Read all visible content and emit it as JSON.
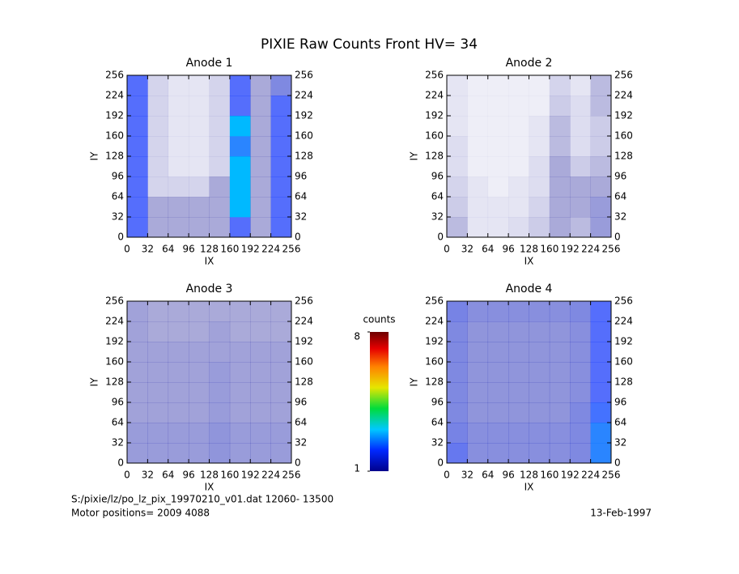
{
  "title": "PIXIE Raw Counts Front HV= 34",
  "chart_data": [
    {
      "type": "heatmap",
      "title": "Anode 1",
      "xlabel": "IX",
      "ylabel": "IY",
      "xlim": [
        0,
        256
      ],
      "ylim": [
        0,
        256
      ],
      "xticks": [
        0,
        32,
        64,
        96,
        128,
        160,
        192,
        224,
        256
      ],
      "yticks": [
        0,
        32,
        64,
        96,
        128,
        160,
        192,
        224,
        256
      ],
      "z": [
        [
          2,
          1,
          1,
          1,
          1,
          2,
          1,
          2
        ],
        [
          2,
          1,
          1,
          1,
          1,
          3,
          1,
          2
        ],
        [
          2,
          0.5,
          0.5,
          0.5,
          1,
          3,
          1,
          2
        ],
        [
          2,
          0.5,
          0.3,
          0.3,
          0.5,
          3,
          1,
          2
        ],
        [
          2,
          0.5,
          0.3,
          0.3,
          0.5,
          2.5,
          1,
          2
        ],
        [
          2,
          0.5,
          0.3,
          0.3,
          0.5,
          3,
          1,
          2
        ],
        [
          2,
          0.5,
          0.3,
          0.3,
          0.5,
          2,
          1,
          2
        ],
        [
          2,
          0.5,
          0.3,
          0.3,
          0.5,
          2,
          1,
          1.5
        ]
      ]
    },
    {
      "type": "heatmap",
      "title": "Anode 2",
      "xlabel": "IX",
      "ylabel": "IY",
      "xlim": [
        0,
        256
      ],
      "ylim": [
        0,
        256
      ],
      "xticks": [
        0,
        32,
        64,
        96,
        128,
        160,
        192,
        224,
        256
      ],
      "yticks": [
        0,
        32,
        64,
        96,
        128,
        160,
        192,
        224,
        256
      ],
      "z": [
        [
          0.8,
          0.3,
          0.3,
          0.4,
          0.6,
          1,
          0.8,
          1.2
        ],
        [
          0.6,
          0.3,
          0.3,
          0.3,
          0.5,
          1,
          1,
          1.2
        ],
        [
          0.5,
          0.3,
          0.2,
          0.3,
          0.4,
          1,
          1,
          1
        ],
        [
          0.4,
          0.2,
          0.2,
          0.2,
          0.4,
          1,
          0.6,
          0.8
        ],
        [
          0.4,
          0.2,
          0.2,
          0.2,
          0.3,
          0.8,
          0.4,
          0.6
        ],
        [
          0.3,
          0.2,
          0.2,
          0.2,
          0.3,
          0.8,
          0.4,
          0.6
        ],
        [
          0.3,
          0.2,
          0.2,
          0.2,
          0.2,
          0.6,
          0.4,
          0.8
        ],
        [
          0.3,
          0.2,
          0.2,
          0.2,
          0.2,
          0.5,
          0.3,
          0.8
        ]
      ]
    },
    {
      "type": "heatmap",
      "title": "Anode 3",
      "xlabel": "IX",
      "ylabel": "IY",
      "xlim": [
        0,
        256
      ],
      "ylim": [
        0,
        256
      ],
      "xticks": [
        0,
        32,
        64,
        96,
        128,
        160,
        192,
        224,
        256
      ],
      "yticks": [
        0,
        32,
        64,
        96,
        128,
        160,
        192,
        224,
        256
      ],
      "z": [
        [
          1.2,
          1.2,
          1.2,
          1.2,
          1.3,
          1.2,
          1.2,
          1.2
        ],
        [
          1.2,
          1.2,
          1.2,
          1.2,
          1.3,
          1.2,
          1.2,
          1.2
        ],
        [
          1.1,
          1.1,
          1.1,
          1.1,
          1.2,
          1.1,
          1.1,
          1.1
        ],
        [
          1.1,
          1.1,
          1.1,
          1.1,
          1.2,
          1.1,
          1.1,
          1.1
        ],
        [
          1.1,
          1.1,
          1.1,
          1.1,
          1.2,
          1.1,
          1.1,
          1.1
        ],
        [
          1.1,
          1.1,
          1.1,
          1.1,
          1.1,
          1.1,
          1.1,
          1.1
        ],
        [
          1.1,
          1,
          1,
          1,
          1.1,
          1,
          1,
          1
        ],
        [
          1.1,
          1,
          1,
          1,
          1,
          1,
          1,
          1
        ]
      ]
    },
    {
      "type": "heatmap",
      "title": "Anode 4",
      "xlabel": "IX",
      "ylabel": "IY",
      "xlim": [
        0,
        256
      ],
      "ylim": [
        0,
        256
      ],
      "xticks": [
        0,
        32,
        64,
        96,
        128,
        160,
        192,
        224,
        256
      ],
      "yticks": [
        0,
        32,
        64,
        96,
        128,
        160,
        192,
        224,
        256
      ],
      "z": [
        [
          1.8,
          1.4,
          1.4,
          1.4,
          1.4,
          1.4,
          1.5,
          2.5
        ],
        [
          1.6,
          1.4,
          1.4,
          1.4,
          1.4,
          1.4,
          1.5,
          2.5
        ],
        [
          1.5,
          1.3,
          1.3,
          1.3,
          1.3,
          1.3,
          1.5,
          2.2
        ],
        [
          1.5,
          1.3,
          1.3,
          1.3,
          1.3,
          1.3,
          1.4,
          2
        ],
        [
          1.5,
          1.3,
          1.3,
          1.3,
          1.3,
          1.3,
          1.4,
          2
        ],
        [
          1.5,
          1.3,
          1.3,
          1.3,
          1.3,
          1.3,
          1.4,
          2
        ],
        [
          1.5,
          1.3,
          1.3,
          1.3,
          1.3,
          1.3,
          1.4,
          2
        ],
        [
          1.6,
          1.4,
          1.4,
          1.4,
          1.4,
          1.4,
          1.5,
          2
        ]
      ]
    }
  ],
  "colorbar": {
    "label": "counts",
    "zlim": [
      1,
      8
    ],
    "ticks": [
      1,
      8
    ]
  },
  "footer": {
    "file": "S:/pixie/lz/po_lz_pix_19970210_v01.dat    12060- 13500",
    "motor": "Motor positions= 2009 4088",
    "date": "13-Feb-1997"
  }
}
